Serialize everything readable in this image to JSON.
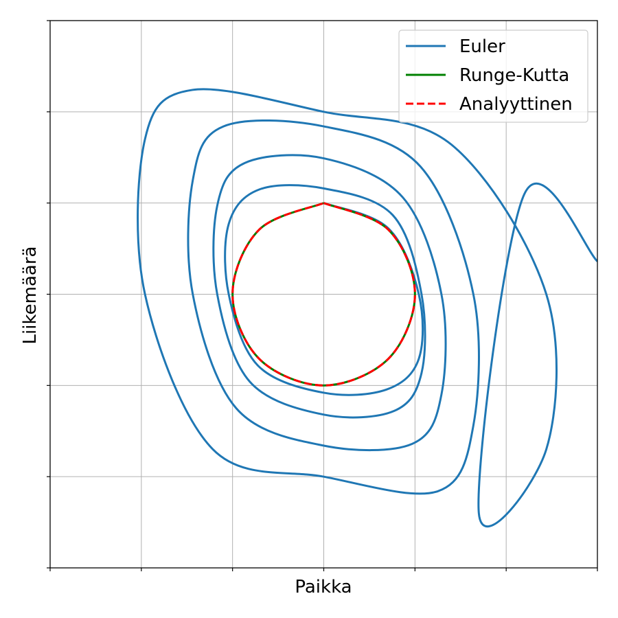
{
  "chart_data": {
    "type": "line",
    "title": "",
    "xlabel": "Paikka",
    "ylabel": "Liikemäärä",
    "xlim": [
      -1.5,
      1.5
    ],
    "ylim": [
      -1.5,
      1.5
    ],
    "xticks": [
      -1.5,
      -1.0,
      -0.5,
      0.0,
      0.5,
      1.0,
      1.5
    ],
    "yticks": [
      -1.5,
      -1.0,
      -0.5,
      0.0,
      0.5,
      1.0,
      1.5
    ],
    "tick_labels_visible": false,
    "grid": true,
    "legend_position": "top-right",
    "series": [
      {
        "name": "Euler",
        "color": "#1f77b4",
        "style": "solid",
        "points": {
          "x": [
            0,
            0.353,
            0.521,
            0.521,
            0.345,
            0,
            -0.362,
            -0.521,
            -0.521,
            -0.354,
            0,
            0.378,
            0.536,
            0.536,
            0.385,
            0,
            -0.405,
            -0.584,
            -0.584,
            -0.432,
            0,
            0.434,
            0.645,
            0.645,
            0.485,
            0,
            -0.48,
            -0.718,
            -0.718,
            -0.55,
            0,
            0.53,
            0.82,
            0.82,
            0.625,
            0,
            -0.608,
            -0.98,
            -0.98,
            -0.72,
            0,
            0.7,
            1.22,
            1.22,
            0.85,
            1.1,
            1.5
          ],
          "y": [
            0.5,
            0.362,
            0,
            -0.354,
            -0.522,
            -0.54,
            -0.39,
            0,
            0.385,
            0.574,
            0.58,
            0.434,
            0,
            -0.432,
            -0.64,
            -0.66,
            -0.48,
            0,
            0.485,
            0.72,
            0.745,
            0.53,
            0,
            -0.55,
            -0.82,
            -0.83,
            -0.625,
            0,
            0.625,
            0.92,
            0.92,
            0.7,
            0,
            -0.72,
            -1.08,
            -1.0,
            -0.85,
            0,
            0.85,
            1.12,
            1.0,
            0.82,
            0,
            -0.85,
            -1.2,
            0.55,
            0.18
          ]
        }
      },
      {
        "name": "Runge-Kutta",
        "color": "#008000",
        "style": "solid",
        "points": {
          "x": [
            0,
            0.354,
            0.5,
            0.354,
            0,
            -0.354,
            -0.5,
            -0.354,
            0
          ],
          "y": [
            0.5,
            0.354,
            0,
            -0.354,
            -0.5,
            -0.354,
            0,
            0.354,
            0.5
          ]
        }
      },
      {
        "name": "Analyyttinen",
        "color": "#ff0000",
        "style": "dashed",
        "points": {
          "x": [
            0,
            0.354,
            0.5,
            0.354,
            0,
            -0.354,
            -0.5,
            -0.354,
            0
          ],
          "y": [
            0.5,
            0.354,
            0,
            -0.354,
            -0.5,
            -0.354,
            0,
            0.354,
            0.5
          ]
        }
      }
    ]
  }
}
